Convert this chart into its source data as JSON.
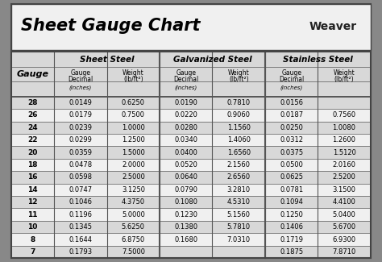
{
  "title": "Sheet Gauge Chart",
  "bg_outer": "#888888",
  "bg_white": "#ffffff",
  "bg_title": "#f0f0f0",
  "bg_header": "#d8d8d8",
  "bg_row_dark": "#d8d8d8",
  "bg_row_light": "#f0f0f0",
  "border_color": "#444444",
  "gauges": [
    28,
    26,
    24,
    22,
    20,
    18,
    16,
    14,
    12,
    11,
    10,
    8,
    7
  ],
  "sheet_steel_decimal": [
    "0.0149",
    "0.0179",
    "0.0239",
    "0.0299",
    "0.0359",
    "0.0478",
    "0.0598",
    "0.0747",
    "0.1046",
    "0.1196",
    "0.1345",
    "0.1644",
    "0.1793"
  ],
  "sheet_steel_weight": [
    "0.6250",
    "0.7500",
    "1.0000",
    "1.2500",
    "1.5000",
    "2.0000",
    "2.5000",
    "3.1250",
    "4.3750",
    "5.0000",
    "5.6250",
    "6.8750",
    "7.5000"
  ],
  "galv_decimal": [
    "0.0190",
    "0.0220",
    "0.0280",
    "0.0340",
    "0.0400",
    "0.0520",
    "0.0640",
    "0.0790",
    "0.1080",
    "0.1230",
    "0.1380",
    "0.1680",
    ""
  ],
  "galv_weight": [
    "0.7810",
    "0.9060",
    "1.1560",
    "1.4060",
    "1.6560",
    "2.1560",
    "2.6560",
    "3.2810",
    "4.5310",
    "5.1560",
    "5.7810",
    "7.0310",
    ""
  ],
  "stainless_decimal": [
    "0.0156",
    "0.0187",
    "0.0250",
    "0.0312",
    "0.0375",
    "0.0500",
    "0.0625",
    "0.0781",
    "0.1094",
    "0.1250",
    "0.1406",
    "0.1719",
    "0.1875"
  ],
  "stainless_weight": [
    "",
    "0.7560",
    "1.0080",
    "1.2600",
    "1.5120",
    "2.0160",
    "2.5200",
    "3.1500",
    "4.4100",
    "5.0400",
    "5.6700",
    "6.9300",
    "7.8710"
  ]
}
